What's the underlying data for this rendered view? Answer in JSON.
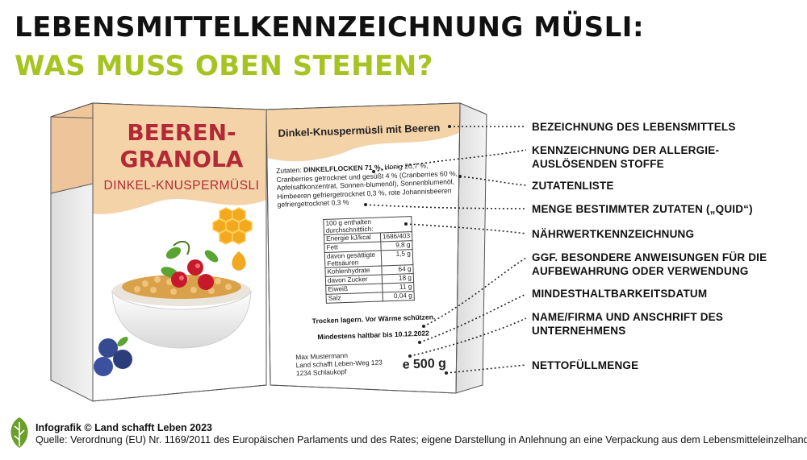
{
  "title_line1": "LEBENSMITTELKENNZEICHNUNG MÜSLI:",
  "title_line2": "WAS MUSS OBEN STEHEN?",
  "front": {
    "title_line1": "BEEREN-",
    "title_line2": "GRANOLA",
    "subtitle": "DINKEL-KNUSPERMÜSLI"
  },
  "back": {
    "product_name": "Dinkel-Knuspermüsli mit Beeren",
    "ingredients_prefix": "Zutaten: ",
    "ingredients_bold": "DINKELFLOCKEN 71 %,",
    "ingredients_rest": " Honig 20,7 %, Cranberries getrocknet und gesüßt 4 % (Cranberries 60 %, Apfelsaftkonzentrat, Sonnen-blumenöl), Sonnenblumenöl, Himbeeren gefriergetrocknet 0,3 %, rote Johannisbeeren gefriergetrocknet 0,3 %",
    "nutrition_header": "100 g enthalten durchschnittlich:",
    "nutrition_rows": [
      {
        "label": "Energie kJ/kcal",
        "value": "1686/403"
      },
      {
        "label": "Fett",
        "value": "9,8 g"
      },
      {
        "label": "davon gesättigte Fettsäuren",
        "value": "1,5 g"
      },
      {
        "label": "Kohlenhydrate",
        "value": "64 g"
      },
      {
        "label": "davon Zucker",
        "value": "18 g"
      },
      {
        "label": "Eiweiß",
        "value": "11 g"
      },
      {
        "label": "Salz",
        "value": "0,04 g"
      }
    ],
    "storage": "Trocken lagern. Vor Wärme schützen.",
    "best_before": "Mindestens haltbar bis 10.12.2022",
    "company_line1": "Max Mustermann",
    "company_line2": "Land schafft Leben-Weg 123",
    "company_line3": "1234 Schlaukopf",
    "weight": "e 500 g"
  },
  "annotations": [
    "BEZEICHNUNG DES LEBENSMITTELS",
    "KENNZEICHNUNG DER ALLERGIE-AUSLÖSENDEN STOFFE",
    "ZUTATENLISTE",
    "MENGE BESTIMMTER ZUTATEN („QUID“)",
    "NÄHRWERTKENNZEICHNUNG",
    "GGF. BESONDERE ANWEISUNGEN FÜR DIE AUFBEWAHRUNG ODER VERWENDUNG",
    "MINDESTHALTBARKEITSDATUM",
    "NAME/FIRMA UND ANSCHRIFT DES UNTERNEHMENS",
    "NETTOFÜLLMENGE"
  ],
  "footer": {
    "credit": "Infografik © Land schafft Leben 2023",
    "source": "Quelle: Verordnung (EU) Nr. 1169/2011 des Europäischen Parlaments und des Rates; eigene Darstellung in Anlehnung an eine Verpackung aus dem Lebensmitteleinzelhandel"
  },
  "colors": {
    "accent_green": "#a6c421",
    "title_red": "#b12a35",
    "box_peach": "#f5d3a8"
  }
}
